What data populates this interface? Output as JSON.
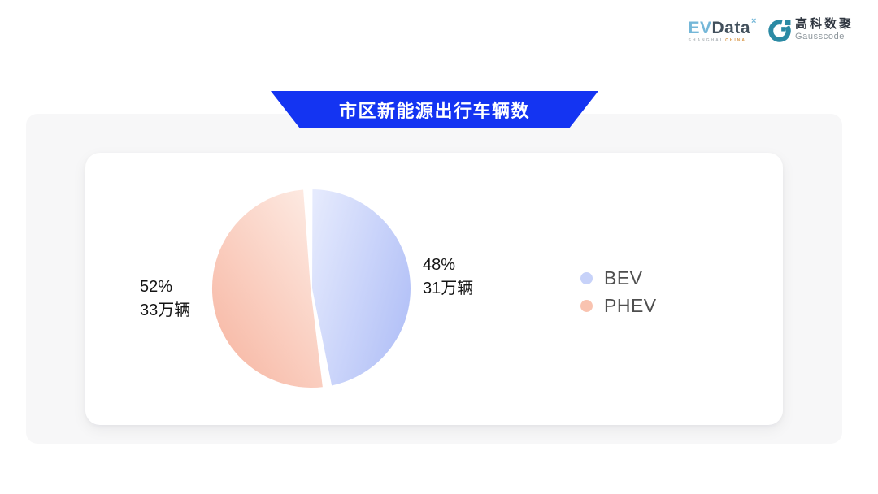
{
  "header": {
    "evdata_logo": {
      "name_ev": "EV",
      "name_data": "Data",
      "sup": "×",
      "subtext_left": "SHANGHAI",
      "subtext_right": "CHINA"
    },
    "gausscode_logo": {
      "cn": "高科数聚",
      "en": "Gausscode",
      "icon_color": "#2b8aa4"
    }
  },
  "banner": {
    "title": "市区新能源出行车辆数",
    "bg_color": "#1434f2",
    "text_color": "#ffffff"
  },
  "chart_data": {
    "type": "pie",
    "title": "市区新能源出行车辆数",
    "unit": "万辆",
    "legend_position": "right",
    "start_angle_deg": -2,
    "direction": "clockwise",
    "gap_deg": 2.2,
    "series": [
      {
        "name": "BEV",
        "pct": 48,
        "pct_label": "48%",
        "value": 31,
        "count_label": "31万辆",
        "gradient_start": "#e5eafd",
        "gradient_end": "#b3c1f7",
        "legend_color": "#c7d2f9"
      },
      {
        "name": "PHEV",
        "pct": 52,
        "pct_label": "52%",
        "value": 33,
        "count_label": "33万辆",
        "gradient_start": "#fdeae2",
        "gradient_end": "#f7b5a1",
        "legend_color": "#f9c3b0"
      }
    ]
  }
}
